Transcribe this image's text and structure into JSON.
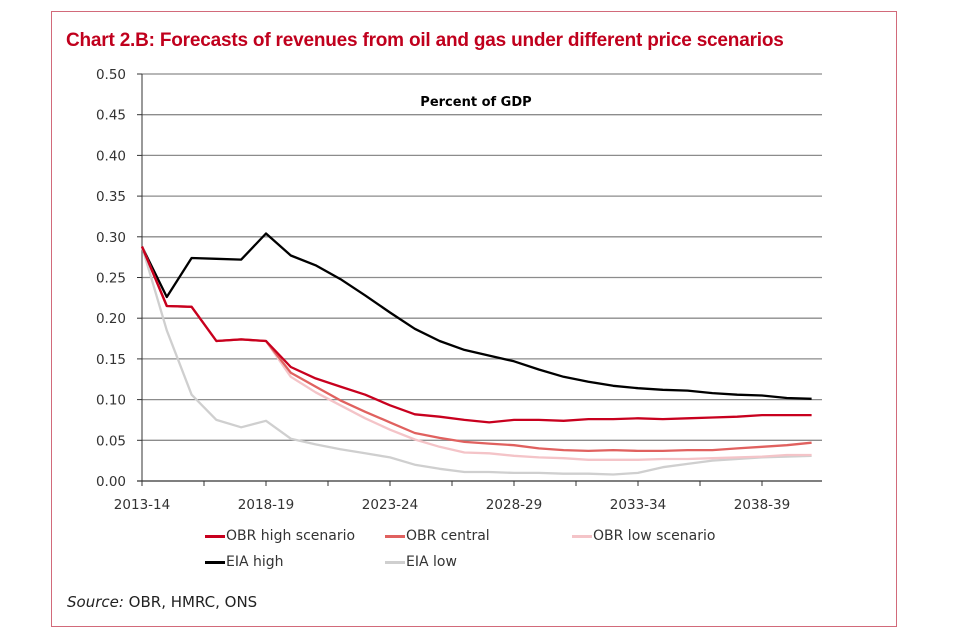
{
  "chart_data": {
    "type": "line",
    "title": "Chart 2.B: Forecasts of revenues from oil and gas under different price scenarios",
    "subtitle": "Percent of GDP",
    "xlabel": "",
    "ylabel": "",
    "ylim": [
      0,
      0.5
    ],
    "yticks": [
      "0.00",
      "0.05",
      "0.10",
      "0.15",
      "0.20",
      "0.25",
      "0.30",
      "0.35",
      "0.40",
      "0.45",
      "0.50"
    ],
    "ytick_values": [
      0,
      0.05,
      0.1,
      0.15,
      0.2,
      0.25,
      0.3,
      0.35,
      0.4,
      0.45,
      0.5
    ],
    "grid": "horizontal",
    "x": [
      "2013-14",
      "2014-15",
      "2015-16",
      "2016-17",
      "2017-18",
      "2018-19",
      "2019-20",
      "2020-21",
      "2021-22",
      "2022-23",
      "2023-24",
      "2024-25",
      "2025-26",
      "2026-27",
      "2027-28",
      "2028-29",
      "2029-30",
      "2030-31",
      "2031-32",
      "2032-33",
      "2033-34",
      "2034-35",
      "2035-36",
      "2036-37",
      "2037-38",
      "2038-39",
      "2039-40",
      "2040-41"
    ],
    "xtick_labels": [
      "2013-14",
      "2018-19",
      "2023-24",
      "2028-29",
      "2033-34",
      "2038-39"
    ],
    "legend_position": "bottom",
    "series": [
      {
        "name": "EIA high",
        "color": "#000000",
        "values": [
          0.288,
          0.226,
          0.274,
          0.273,
          0.272,
          0.304,
          0.277,
          0.265,
          0.248,
          0.228,
          0.207,
          0.187,
          0.172,
          0.161,
          0.154,
          0.147,
          0.137,
          0.128,
          0.122,
          0.117,
          0.114,
          0.112,
          0.111,
          0.108,
          0.106,
          0.105,
          0.102,
          0.101
        ]
      },
      {
        "name": "EIA low",
        "color": "#cfcfcf",
        "values": [
          0.288,
          0.185,
          0.106,
          0.075,
          0.066,
          0.074,
          0.052,
          0.045,
          0.039,
          0.034,
          0.029,
          0.02,
          0.015,
          0.011,
          0.011,
          0.01,
          0.01,
          0.009,
          0.009,
          0.008,
          0.01,
          0.017,
          0.021,
          0.025,
          0.027,
          0.029,
          0.03,
          0.031
        ]
      },
      {
        "name": "OBR low scenario",
        "color": "#f4c4c8",
        "values": [
          0.288,
          0.215,
          0.214,
          0.172,
          0.174,
          0.172,
          0.128,
          0.109,
          0.093,
          0.077,
          0.063,
          0.051,
          0.042,
          0.035,
          0.034,
          0.031,
          0.029,
          0.028,
          0.026,
          0.026,
          0.026,
          0.027,
          0.027,
          0.028,
          0.029,
          0.03,
          0.032,
          0.032
        ]
      },
      {
        "name": "OBR central",
        "color": "#e0615f",
        "values": [
          0.288,
          0.215,
          0.214,
          0.172,
          0.174,
          0.172,
          0.133,
          0.116,
          0.099,
          0.085,
          0.072,
          0.059,
          0.053,
          0.048,
          0.046,
          0.044,
          0.04,
          0.038,
          0.037,
          0.038,
          0.037,
          0.037,
          0.038,
          0.038,
          0.04,
          0.042,
          0.044,
          0.047
        ]
      },
      {
        "name": "OBR high scenario",
        "color": "#c8001e",
        "values": [
          0.288,
          0.215,
          0.214,
          0.172,
          0.174,
          0.172,
          0.14,
          0.126,
          0.116,
          0.106,
          0.093,
          0.082,
          0.079,
          0.075,
          0.072,
          0.075,
          0.075,
          0.074,
          0.076,
          0.076,
          0.077,
          0.076,
          0.077,
          0.078,
          0.079,
          0.081,
          0.081,
          0.081
        ]
      }
    ]
  },
  "legend": {
    "items": [
      {
        "label": "OBR high scenario",
        "color": "#c8001e"
      },
      {
        "label": "OBR central",
        "color": "#e0615f"
      },
      {
        "label": "OBR low scenario",
        "color": "#f4c4c8"
      },
      {
        "label": "EIA high",
        "color": "#000000"
      },
      {
        "label": "EIA low",
        "color": "#cfcfcf"
      }
    ]
  },
  "source": {
    "prefix": "Source:",
    "text": " OBR, HMRC, ONS"
  }
}
